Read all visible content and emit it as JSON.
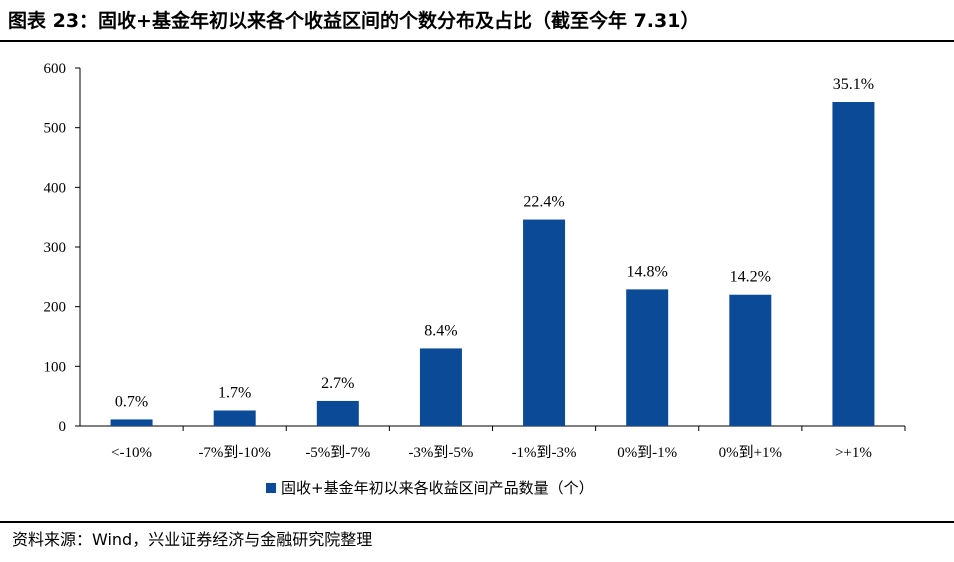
{
  "header": {
    "title": "图表 23：固收+基金年初以来各个收益区间的个数分布及占比（截至今年 7.31）"
  },
  "footer": {
    "source": "资料来源：Wind，兴业证券经济与金融研究院整理"
  },
  "colors": {
    "bar": "#0b4a96",
    "axis": "#000000"
  },
  "chart_data": {
    "type": "bar",
    "title": "",
    "xlabel": "",
    "ylabel": "",
    "ylim": [
      0,
      600
    ],
    "yticks": [
      0,
      100,
      200,
      300,
      400,
      500,
      600
    ],
    "categories": [
      "<-10%",
      "-7%到-10%",
      "-5%到-7%",
      "-3%到-5%",
      "-1%到-3%",
      "0%到-1%",
      "0%到+1%",
      ">+1%"
    ],
    "series": [
      {
        "name": "固收+基金年初以来各收益区间产品数量（个）",
        "values": [
          11,
          26,
          42,
          130,
          346,
          229,
          220,
          543
        ]
      }
    ],
    "data_labels": [
      "0.7%",
      "1.7%",
      "2.7%",
      "8.4%",
      "22.4%",
      "14.8%",
      "14.2%",
      "35.1%"
    ],
    "grid": false,
    "legend_position": "bottom"
  }
}
